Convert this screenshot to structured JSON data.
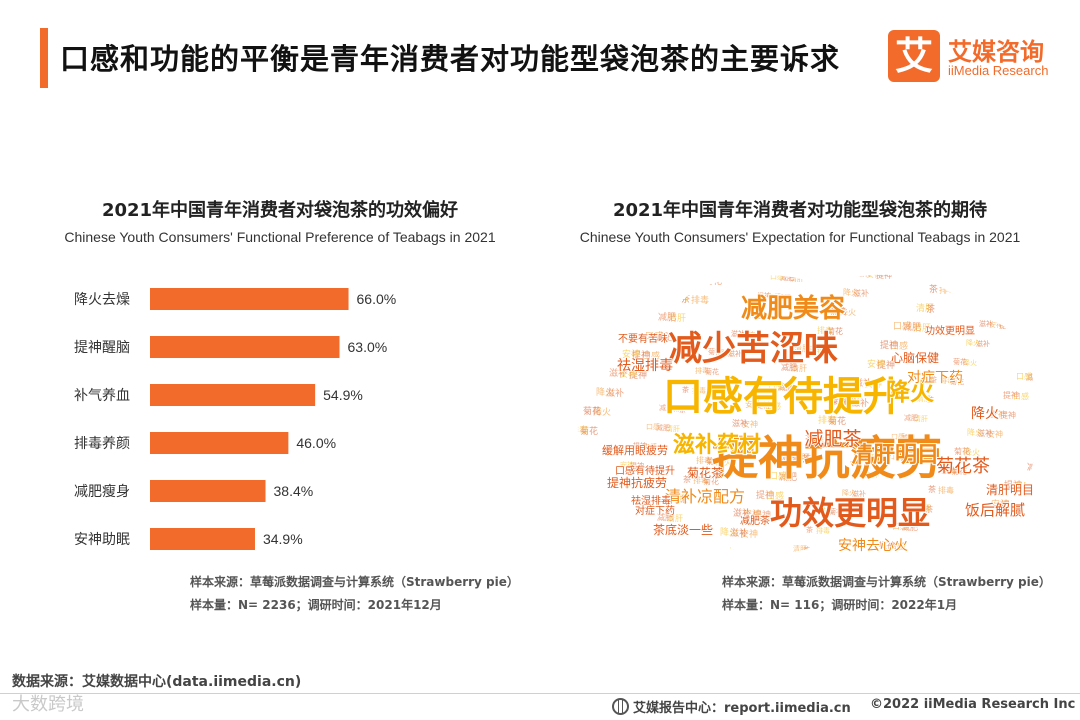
{
  "header": {
    "title": "口感和功能的平衡是青年消费者对功能型袋泡茶的主要诉求",
    "logo_mark": "艾",
    "logo_cn": "艾媒咨询",
    "logo_en": "iiMedia Research"
  },
  "left_chart": {
    "title_cn": "2021年中国青年消费者对袋泡茶的功效偏好",
    "title_en": "Chinese Youth Consumers' Functional Preference of Teabags in 2021",
    "note_source": "样本来源：草莓派数据调查与计算系统（Strawberry pie）",
    "note_sample": "样本量：N= 2236；调研时间：2021年12月"
  },
  "right_chart": {
    "title_cn": "2021年中国青年消费者对功能型袋泡茶的期待",
    "title_en": "Chinese Youth Consumers' Expectation for Functional Teabags in 2021",
    "note_source": "样本来源：草莓派数据调查与计算系统（Strawberry pie）",
    "note_sample": "样本量：N= 116；调研时间：2022年1月"
  },
  "chart_data": [
    {
      "type": "bar",
      "orientation": "horizontal",
      "categories": [
        "降火去燥",
        "提神醒脑",
        "补气养血",
        "排毒养颜",
        "减肥瘦身",
        "安神助眠"
      ],
      "values": [
        66.0,
        63.0,
        54.9,
        46.0,
        38.4,
        34.9
      ],
      "value_labels": [
        "66.0%",
        "63.0%",
        "54.9%",
        "46.0%",
        "38.4%",
        "34.9%"
      ],
      "unit": "%",
      "xlim": [
        0,
        100
      ],
      "grid": false,
      "bar_color": "#f26b2a"
    },
    {
      "type": "wordcloud",
      "words": [
        {
          "text": "提神抗疲劳",
          "color": "#f08a18",
          "weight": 5
        },
        {
          "text": "口感有待提升",
          "color": "#f7b500",
          "weight": 5
        },
        {
          "text": "减少苦涩味",
          "color": "#e25a1c",
          "weight": 4
        },
        {
          "text": "功效更明显",
          "color": "#e25a1c",
          "weight": 4
        },
        {
          "text": "减肥美容",
          "color": "#f08a18",
          "weight": 3
        },
        {
          "text": "滋补药材",
          "color": "#f7b500",
          "weight": 3
        },
        {
          "text": "清肝明目",
          "color": "#f08a18",
          "weight": 3
        },
        {
          "text": "降火",
          "color": "#f7b500",
          "weight": 3
        },
        {
          "text": "减肥茶",
          "color": "#e25a1c",
          "weight": 2
        },
        {
          "text": "菊花茶",
          "color": "#e25a1c",
          "weight": 2
        },
        {
          "text": "清补凉配方",
          "color": "#f08a18",
          "weight": 2
        },
        {
          "text": "饭后解腻",
          "color": "#e25a1c",
          "weight": 2
        },
        {
          "text": "安神去心火",
          "color": "#f08a18",
          "weight": 2
        },
        {
          "text": "提神抗疲劳",
          "color": "#e25a1c",
          "weight": 1
        },
        {
          "text": "祛湿排毒",
          "color": "#e25a1c",
          "weight": 2
        },
        {
          "text": "对症下药",
          "color": "#f08a18",
          "weight": 2
        },
        {
          "text": "心脑保健",
          "color": "#e25a1c",
          "weight": 1
        },
        {
          "text": "茶底淡一些",
          "color": "#e25a1c",
          "weight": 1
        },
        {
          "text": "清肝明目",
          "color": "#e25a1c",
          "weight": 1
        },
        {
          "text": "菊花茶",
          "color": "#e25a1c",
          "weight": 1
        },
        {
          "text": "缓解用眼疲劳",
          "color": "#e25a1c",
          "weight": 1
        },
        {
          "text": "口感有待提升",
          "color": "#e25a1c",
          "weight": 1
        },
        {
          "text": "不要有苦味",
          "color": "#e25a1c",
          "weight": 1
        },
        {
          "text": "功效更明显",
          "color": "#e25a1c",
          "weight": 1
        },
        {
          "text": "降火",
          "color": "#e25a1c",
          "weight": 1
        },
        {
          "text": "祛湿排毒",
          "color": "#e25a1c",
          "weight": 1
        },
        {
          "text": "对症下药",
          "color": "#e25a1c",
          "weight": 1
        },
        {
          "text": "减肥茶",
          "color": "#e25a1c",
          "weight": 1
        }
      ]
    }
  ],
  "footer": {
    "data_source": "数据来源：艾媒数据中心(data.iimedia.cn)",
    "watermark": "大数跨境",
    "report_center": "艾媒报告中心：report.iimedia.cn",
    "copyright": "©2022  iiMedia Research  Inc"
  }
}
